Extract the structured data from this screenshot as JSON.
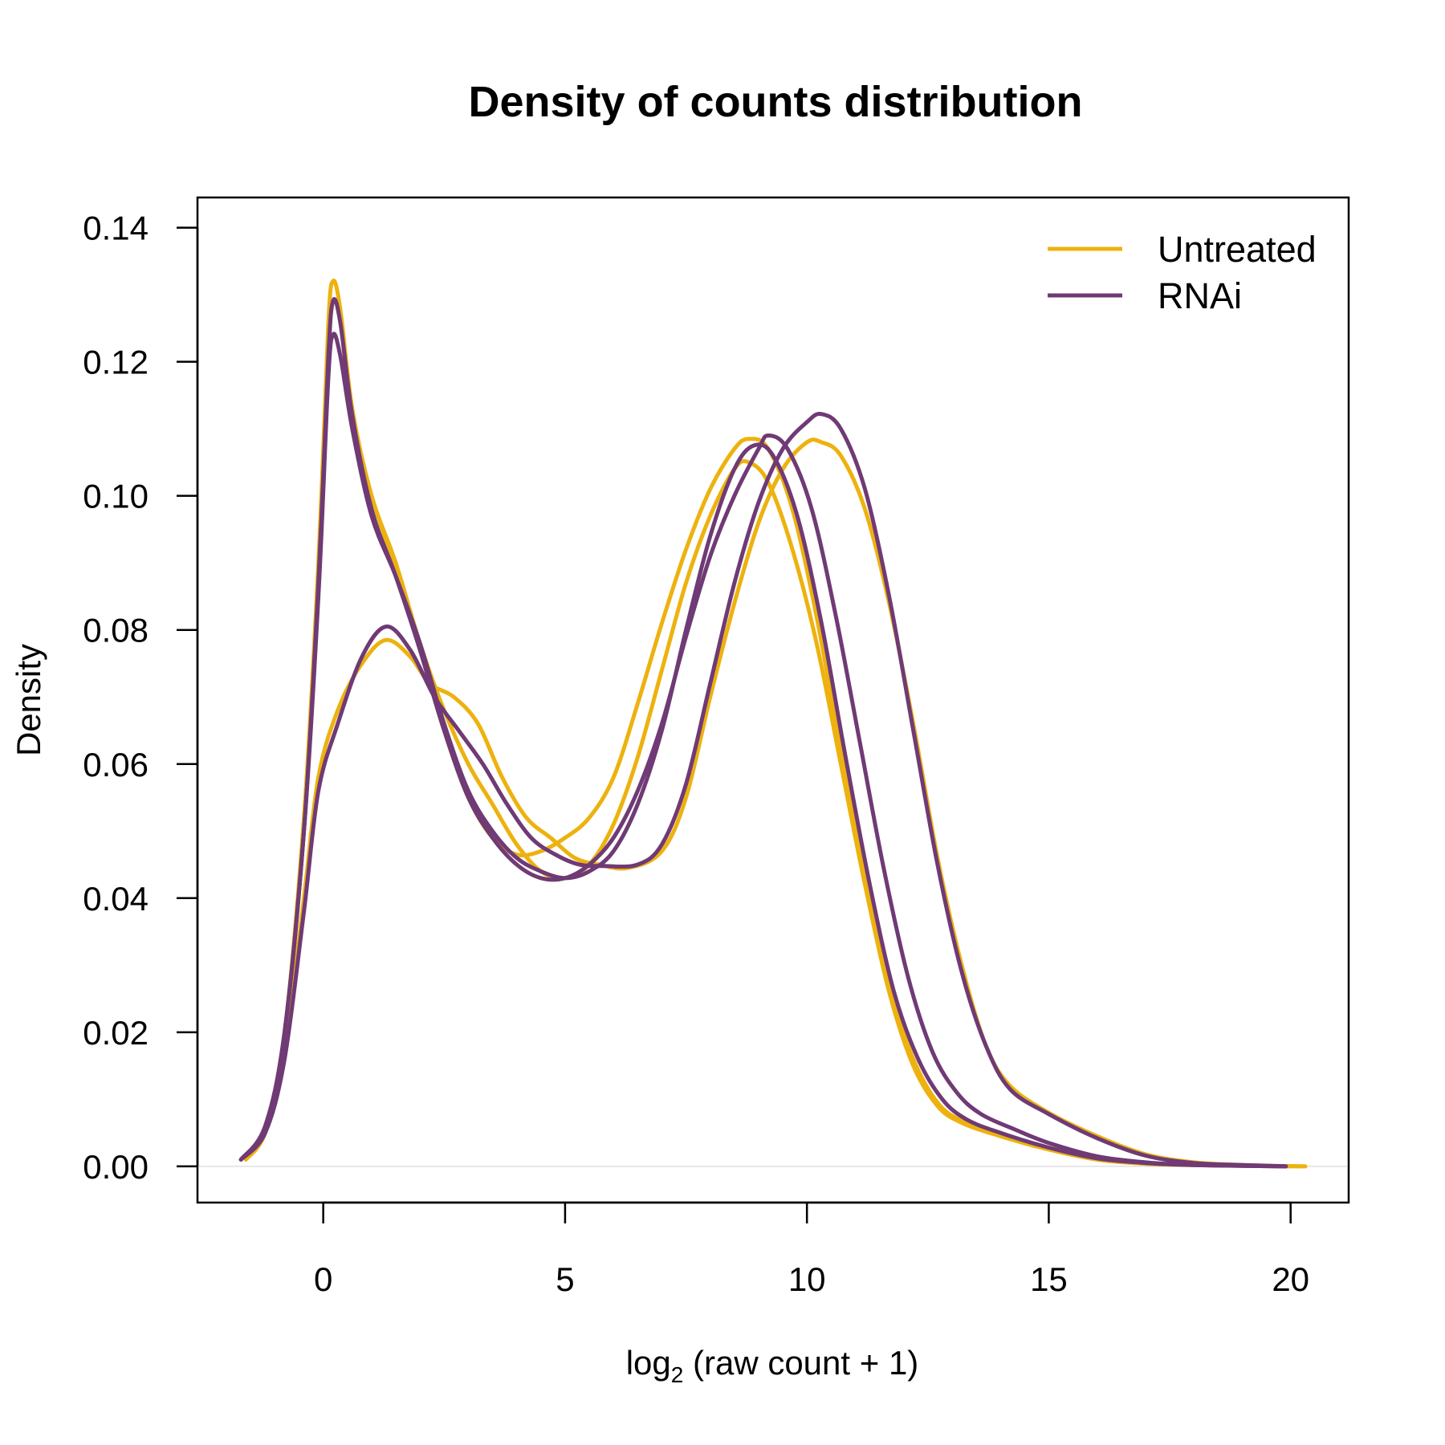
{
  "chart_data": {
    "type": "line",
    "title": "Density of counts distribution",
    "xlabel": {
      "prefix": "log",
      "subscript": "2",
      "expr": "raw count + 1"
    },
    "ylabel": "Density",
    "xlim": [
      -2.6,
      21.2
    ],
    "ylim": [
      -0.0054,
      0.1445
    ],
    "x_ticks": [
      0,
      5,
      10,
      15,
      20
    ],
    "x_tick_labels": [
      "0",
      "5",
      "10",
      "15",
      "20"
    ],
    "y_ticks": [
      0,
      0.02,
      0.04,
      0.06,
      0.08,
      0.1,
      0.12,
      0.14
    ],
    "y_tick_labels": [
      "0.00",
      "0.02",
      "0.04",
      "0.06",
      "0.08",
      "0.10",
      "0.12",
      "0.14"
    ],
    "baseline": 0,
    "grid": false,
    "legend": {
      "position": "top-right",
      "entries": [
        {
          "label": "Untreated",
          "color": "#EDB20F"
        },
        {
          "label": "RNAi",
          "color": "#6F3A75"
        }
      ]
    },
    "series": [
      {
        "group": "Untreated",
        "color": "#EDB20F",
        "points": [
          [
            -1.7,
            0.001
          ],
          [
            -1.2,
            0.006
          ],
          [
            -0.8,
            0.02
          ],
          [
            -0.4,
            0.052
          ],
          [
            -0.1,
            0.09
          ],
          [
            0.1,
            0.125
          ],
          [
            0.2,
            0.132
          ],
          [
            0.35,
            0.128
          ],
          [
            0.6,
            0.113
          ],
          [
            1.0,
            0.1
          ],
          [
            1.5,
            0.09
          ],
          [
            2.0,
            0.078
          ],
          [
            2.5,
            0.068
          ],
          [
            3.0,
            0.06
          ],
          [
            3.5,
            0.054
          ],
          [
            4.0,
            0.048
          ],
          [
            4.5,
            0.044
          ],
          [
            5.0,
            0.043
          ],
          [
            5.5,
            0.045
          ],
          [
            6.0,
            0.051
          ],
          [
            6.5,
            0.061
          ],
          [
            7.0,
            0.074
          ],
          [
            7.5,
            0.087
          ],
          [
            8.0,
            0.097
          ],
          [
            8.5,
            0.104
          ],
          [
            8.8,
            0.105
          ],
          [
            9.2,
            0.102
          ],
          [
            9.7,
            0.092
          ],
          [
            10.2,
            0.078
          ],
          [
            10.7,
            0.06
          ],
          [
            11.2,
            0.042
          ],
          [
            11.7,
            0.026
          ],
          [
            12.2,
            0.015
          ],
          [
            12.7,
            0.009
          ],
          [
            13.2,
            0.0065
          ],
          [
            14.0,
            0.0045
          ],
          [
            15.0,
            0.0025
          ],
          [
            16.0,
            0.001
          ],
          [
            17.0,
            0.0004
          ],
          [
            18.0,
            0.0002
          ],
          [
            19.0,
            0.0001
          ],
          [
            20.3,
            0.0
          ]
        ]
      },
      {
        "group": "Untreated",
        "color": "#EDB20F",
        "points": [
          [
            -1.6,
            0.001
          ],
          [
            -1.2,
            0.005
          ],
          [
            -0.8,
            0.017
          ],
          [
            -0.4,
            0.04
          ],
          [
            -0.1,
            0.058
          ],
          [
            0.3,
            0.068
          ],
          [
            0.8,
            0.075
          ],
          [
            1.3,
            0.0785
          ],
          [
            1.8,
            0.076
          ],
          [
            2.2,
            0.072
          ],
          [
            2.7,
            0.07
          ],
          [
            3.2,
            0.066
          ],
          [
            3.7,
            0.058
          ],
          [
            4.2,
            0.052
          ],
          [
            4.7,
            0.049
          ],
          [
            5.2,
            0.046
          ],
          [
            5.7,
            0.045
          ],
          [
            6.3,
            0.0445
          ],
          [
            7.0,
            0.047
          ],
          [
            7.5,
            0.055
          ],
          [
            8.0,
            0.07
          ],
          [
            8.5,
            0.084
          ],
          [
            9.0,
            0.096
          ],
          [
            9.5,
            0.104
          ],
          [
            10.0,
            0.108
          ],
          [
            10.3,
            0.108
          ],
          [
            10.7,
            0.106
          ],
          [
            11.2,
            0.098
          ],
          [
            11.7,
            0.084
          ],
          [
            12.2,
            0.066
          ],
          [
            12.7,
            0.046
          ],
          [
            13.2,
            0.03
          ],
          [
            13.7,
            0.018
          ],
          [
            14.2,
            0.012
          ],
          [
            15.0,
            0.008
          ],
          [
            16.0,
            0.0045
          ],
          [
            17.0,
            0.0018
          ],
          [
            18.0,
            0.0006
          ],
          [
            19.0,
            0.0002
          ],
          [
            20.3,
            0.0
          ]
        ]
      },
      {
        "group": "Untreated",
        "color": "#EDB20F",
        "points": [
          [
            -1.7,
            0.001
          ],
          [
            -1.2,
            0.006
          ],
          [
            -0.8,
            0.02
          ],
          [
            -0.4,
            0.05
          ],
          [
            -0.1,
            0.088
          ],
          [
            0.1,
            0.12
          ],
          [
            0.2,
            0.129
          ],
          [
            0.35,
            0.126
          ],
          [
            0.6,
            0.112
          ],
          [
            1.0,
            0.1
          ],
          [
            1.5,
            0.089
          ],
          [
            2.0,
            0.077
          ],
          [
            2.5,
            0.065
          ],
          [
            3.0,
            0.055
          ],
          [
            3.5,
            0.049
          ],
          [
            4.0,
            0.0465
          ],
          [
            4.5,
            0.047
          ],
          [
            5.0,
            0.049
          ],
          [
            5.5,
            0.052
          ],
          [
            6.0,
            0.058
          ],
          [
            6.5,
            0.069
          ],
          [
            7.0,
            0.081
          ],
          [
            7.5,
            0.092
          ],
          [
            8.0,
            0.101
          ],
          [
            8.5,
            0.107
          ],
          [
            8.8,
            0.1085
          ],
          [
            9.2,
            0.107
          ],
          [
            9.7,
            0.098
          ],
          [
            10.2,
            0.082
          ],
          [
            10.7,
            0.062
          ],
          [
            11.2,
            0.043
          ],
          [
            11.7,
            0.027
          ],
          [
            12.2,
            0.016
          ],
          [
            12.7,
            0.0095
          ],
          [
            13.2,
            0.0068
          ],
          [
            14.0,
            0.0048
          ],
          [
            15.0,
            0.0026
          ],
          [
            16.0,
            0.0011
          ],
          [
            17.0,
            0.0004
          ],
          [
            18.0,
            0.0002
          ],
          [
            20.0,
            0.0
          ]
        ]
      },
      {
        "group": "RNAi",
        "color": "#6F3A75",
        "points": [
          [
            -1.7,
            0.001
          ],
          [
            -1.2,
            0.006
          ],
          [
            -0.8,
            0.02
          ],
          [
            -0.4,
            0.05
          ],
          [
            -0.1,
            0.085
          ],
          [
            0.1,
            0.117
          ],
          [
            0.2,
            0.124
          ],
          [
            0.35,
            0.121
          ],
          [
            0.6,
            0.11
          ],
          [
            1.0,
            0.097
          ],
          [
            1.5,
            0.088
          ],
          [
            2.0,
            0.078
          ],
          [
            2.5,
            0.066
          ],
          [
            3.0,
            0.056
          ],
          [
            3.5,
            0.05
          ],
          [
            4.0,
            0.046
          ],
          [
            4.5,
            0.044
          ],
          [
            5.0,
            0.043
          ],
          [
            5.5,
            0.044
          ],
          [
            6.0,
            0.047
          ],
          [
            6.5,
            0.054
          ],
          [
            7.0,
            0.065
          ],
          [
            7.5,
            0.08
          ],
          [
            8.0,
            0.094
          ],
          [
            8.5,
            0.104
          ],
          [
            8.9,
            0.1075
          ],
          [
            9.3,
            0.106
          ],
          [
            9.8,
            0.097
          ],
          [
            10.3,
            0.081
          ],
          [
            10.8,
            0.061
          ],
          [
            11.3,
            0.042
          ],
          [
            11.8,
            0.026
          ],
          [
            12.3,
            0.016
          ],
          [
            12.8,
            0.01
          ],
          [
            13.3,
            0.007
          ],
          [
            14.0,
            0.005
          ],
          [
            15.0,
            0.0028
          ],
          [
            16.0,
            0.0012
          ],
          [
            17.0,
            0.0005
          ],
          [
            18.0,
            0.0002
          ],
          [
            19.9,
            0.0
          ]
        ]
      },
      {
        "group": "RNAi",
        "color": "#6F3A75",
        "points": [
          [
            -1.7,
            0.001
          ],
          [
            -1.2,
            0.006
          ],
          [
            -0.8,
            0.02
          ],
          [
            -0.4,
            0.05
          ],
          [
            -0.1,
            0.087
          ],
          [
            0.1,
            0.12
          ],
          [
            0.2,
            0.129
          ],
          [
            0.35,
            0.126
          ],
          [
            0.6,
            0.112
          ],
          [
            1.0,
            0.098
          ],
          [
            1.5,
            0.088
          ],
          [
            2.0,
            0.077
          ],
          [
            2.5,
            0.065
          ],
          [
            3.0,
            0.055
          ],
          [
            3.5,
            0.049
          ],
          [
            4.0,
            0.045
          ],
          [
            4.5,
            0.043
          ],
          [
            5.0,
            0.043
          ],
          [
            5.5,
            0.045
          ],
          [
            6.0,
            0.049
          ],
          [
            6.5,
            0.056
          ],
          [
            7.0,
            0.066
          ],
          [
            7.5,
            0.079
          ],
          [
            8.0,
            0.091
          ],
          [
            8.5,
            0.1
          ],
          [
            9.0,
            0.107
          ],
          [
            9.2,
            0.109
          ],
          [
            9.6,
            0.107
          ],
          [
            10.1,
            0.098
          ],
          [
            10.6,
            0.082
          ],
          [
            11.1,
            0.063
          ],
          [
            11.6,
            0.044
          ],
          [
            12.1,
            0.028
          ],
          [
            12.6,
            0.017
          ],
          [
            13.1,
            0.011
          ],
          [
            13.6,
            0.0078
          ],
          [
            14.3,
            0.0055
          ],
          [
            15.0,
            0.0035
          ],
          [
            16.0,
            0.0015
          ],
          [
            17.0,
            0.0006
          ],
          [
            18.0,
            0.0002
          ],
          [
            19.9,
            0.0
          ]
        ]
      },
      {
        "group": "RNAi",
        "color": "#6F3A75",
        "points": [
          [
            -1.7,
            0.001
          ],
          [
            -1.2,
            0.005
          ],
          [
            -0.8,
            0.016
          ],
          [
            -0.4,
            0.038
          ],
          [
            -0.1,
            0.056
          ],
          [
            0.3,
            0.066
          ],
          [
            0.8,
            0.076
          ],
          [
            1.3,
            0.0805
          ],
          [
            1.8,
            0.077
          ],
          [
            2.3,
            0.07
          ],
          [
            2.8,
            0.065
          ],
          [
            3.3,
            0.06
          ],
          [
            3.8,
            0.054
          ],
          [
            4.3,
            0.049
          ],
          [
            4.8,
            0.0465
          ],
          [
            5.3,
            0.045
          ],
          [
            5.8,
            0.0448
          ],
          [
            6.5,
            0.045
          ],
          [
            7.0,
            0.048
          ],
          [
            7.5,
            0.057
          ],
          [
            8.0,
            0.072
          ],
          [
            8.5,
            0.087
          ],
          [
            9.0,
            0.099
          ],
          [
            9.5,
            0.107
          ],
          [
            10.0,
            0.111
          ],
          [
            10.3,
            0.1122
          ],
          [
            10.7,
            0.11
          ],
          [
            11.2,
            0.101
          ],
          [
            11.7,
            0.085
          ],
          [
            12.2,
            0.065
          ],
          [
            12.7,
            0.045
          ],
          [
            13.2,
            0.029
          ],
          [
            13.7,
            0.018
          ],
          [
            14.2,
            0.0115
          ],
          [
            15.0,
            0.0078
          ],
          [
            16.0,
            0.0042
          ],
          [
            17.0,
            0.0016
          ],
          [
            18.0,
            0.0005
          ],
          [
            19.0,
            0.0002
          ],
          [
            19.9,
            0.0
          ]
        ]
      }
    ]
  }
}
